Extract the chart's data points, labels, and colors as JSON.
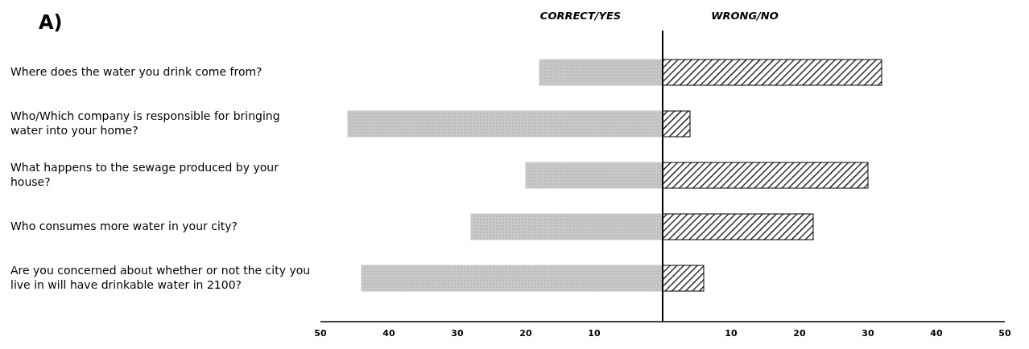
{
  "chart_data": {
    "type": "bar",
    "orientation": "horizontal",
    "title": "A)",
    "categories": [
      "Where does the water you drink come from?",
      "Who/Which company is responsible for bringing water into your home?",
      "What happens to the sewage produced by your house?",
      "Who consumes more water in your city?",
      "Are you concerned about whether or not the city you live in will have drinkable water in 2100?"
    ],
    "series": [
      {
        "name": "CORRECT/YES",
        "color": "#c8c8c8",
        "values": [
          -18,
          -46,
          -20,
          -28,
          -44
        ]
      },
      {
        "name": "WRONG/NO",
        "color": "#000000",
        "values": [
          32,
          4,
          30,
          22,
          6
        ]
      }
    ],
    "xlim": [
      -50,
      50
    ],
    "xticks": [
      {
        "value": -50,
        "label": "50"
      },
      {
        "value": -40,
        "label": "40"
      },
      {
        "value": -30,
        "label": "30"
      },
      {
        "value": -20,
        "label": "20"
      },
      {
        "value": -10,
        "label": "10"
      },
      10,
      20,
      30,
      40,
      50
    ],
    "stacked": true,
    "grid": false
  }
}
